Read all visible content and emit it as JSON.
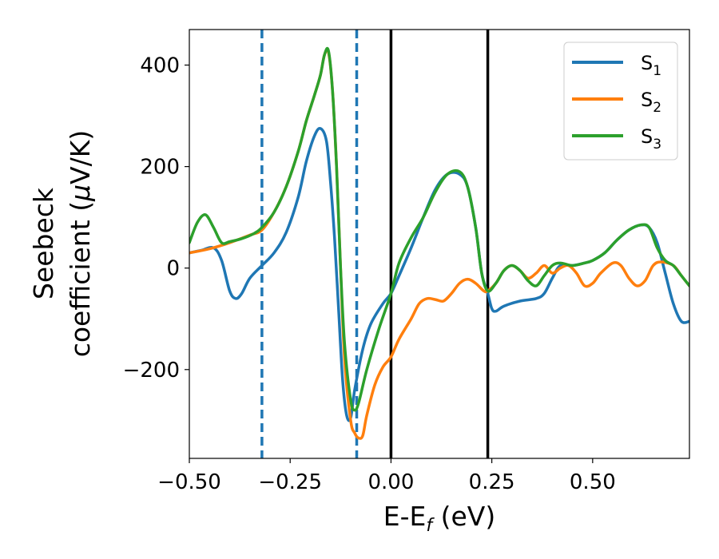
{
  "chart_data": {
    "type": "line",
    "xlabel": {
      "main": "E-E",
      "sub": "f",
      "unit": " (eV)"
    },
    "ylabel": {
      "line1": "Seebeck",
      "line2": "coefficient  (",
      "mu": "μ",
      "line2_end": "V/K)"
    },
    "xlim": [
      -0.5,
      0.74
    ],
    "ylim": [
      -375,
      470
    ],
    "x_ticks": [
      {
        "value": -0.5,
        "label": "−0.50"
      },
      {
        "value": -0.25,
        "label": "−0.25"
      },
      {
        "value": 0.0,
        "label": "0.00"
      },
      {
        "value": 0.25,
        "label": "0.25"
      },
      {
        "value": 0.5,
        "label": "0.50"
      }
    ],
    "y_ticks": [
      {
        "value": -200,
        "label": "−200"
      },
      {
        "value": 0,
        "label": "0"
      },
      {
        "value": 200,
        "label": "200"
      },
      {
        "value": 400,
        "label": "400"
      }
    ],
    "vlines": [
      {
        "x": -0.32,
        "style": "dashed",
        "color": "#1f77b4"
      },
      {
        "x": -0.085,
        "style": "dashed",
        "color": "#1f77b4"
      },
      {
        "x": 0.0,
        "style": "solid",
        "color": "#000000"
      },
      {
        "x": 0.24,
        "style": "solid",
        "color": "#000000"
      }
    ],
    "legend_position": "top-right",
    "series": [
      {
        "name": "S",
        "sub": "1",
        "color": "#1f77b4",
        "points": [
          [
            -0.5,
            30
          ],
          [
            -0.47,
            35
          ],
          [
            -0.44,
            40
          ],
          [
            -0.42,
            15
          ],
          [
            -0.4,
            -45
          ],
          [
            -0.385,
            -60
          ],
          [
            -0.37,
            -50
          ],
          [
            -0.35,
            -20
          ],
          [
            -0.32,
            5
          ],
          [
            -0.29,
            30
          ],
          [
            -0.26,
            70
          ],
          [
            -0.23,
            140
          ],
          [
            -0.21,
            210
          ],
          [
            -0.19,
            260
          ],
          [
            -0.175,
            275
          ],
          [
            -0.16,
            250
          ],
          [
            -0.15,
            170
          ],
          [
            -0.14,
            60
          ],
          [
            -0.13,
            -80
          ],
          [
            -0.12,
            -220
          ],
          [
            -0.11,
            -290
          ],
          [
            -0.1,
            -295
          ],
          [
            -0.09,
            -240
          ],
          [
            -0.07,
            -160
          ],
          [
            -0.05,
            -110
          ],
          [
            -0.02,
            -70
          ],
          [
            0.0,
            -50
          ],
          [
            0.02,
            -15
          ],
          [
            0.05,
            40
          ],
          [
            0.08,
            100
          ],
          [
            0.11,
            155
          ],
          [
            0.14,
            185
          ],
          [
            0.17,
            185
          ],
          [
            0.19,
            160
          ],
          [
            0.21,
            80
          ],
          [
            0.225,
            -10
          ],
          [
            0.24,
            -50
          ],
          [
            0.25,
            -80
          ],
          [
            0.26,
            -85
          ],
          [
            0.28,
            -75
          ],
          [
            0.32,
            -65
          ],
          [
            0.36,
            -60
          ],
          [
            0.38,
            -50
          ],
          [
            0.4,
            -20
          ],
          [
            0.42,
            5
          ],
          [
            0.45,
            5
          ],
          [
            0.48,
            10
          ],
          [
            0.5,
            15
          ],
          [
            0.53,
            30
          ],
          [
            0.56,
            55
          ],
          [
            0.59,
            75
          ],
          [
            0.62,
            85
          ],
          [
            0.64,
            80
          ],
          [
            0.66,
            50
          ],
          [
            0.68,
            -10
          ],
          [
            0.7,
            -70
          ],
          [
            0.72,
            -105
          ],
          [
            0.74,
            -105
          ]
        ]
      },
      {
        "name": "S",
        "sub": "2",
        "color": "#ff7f0e",
        "points": [
          [
            -0.5,
            30
          ],
          [
            -0.45,
            38
          ],
          [
            -0.4,
            50
          ],
          [
            -0.35,
            65
          ],
          [
            -0.32,
            75
          ],
          [
            -0.29,
            110
          ],
          [
            -0.26,
            160
          ],
          [
            -0.23,
            230
          ],
          [
            -0.21,
            290
          ],
          [
            -0.19,
            340
          ],
          [
            -0.175,
            380
          ],
          [
            -0.165,
            420
          ],
          [
            -0.155,
            425
          ],
          [
            -0.145,
            350
          ],
          [
            -0.135,
            200
          ],
          [
            -0.125,
            0
          ],
          [
            -0.115,
            -180
          ],
          [
            -0.1,
            -300
          ],
          [
            -0.09,
            -325
          ],
          [
            -0.08,
            -335
          ],
          [
            -0.07,
            -330
          ],
          [
            -0.06,
            -290
          ],
          [
            -0.04,
            -230
          ],
          [
            -0.02,
            -195
          ],
          [
            0.0,
            -175
          ],
          [
            0.02,
            -140
          ],
          [
            0.05,
            -100
          ],
          [
            0.07,
            -70
          ],
          [
            0.09,
            -60
          ],
          [
            0.11,
            -62
          ],
          [
            0.13,
            -65
          ],
          [
            0.15,
            -50
          ],
          [
            0.17,
            -30
          ],
          [
            0.19,
            -22
          ],
          [
            0.21,
            -30
          ],
          [
            0.23,
            -45
          ],
          [
            0.24,
            -45
          ],
          [
            0.26,
            -30
          ],
          [
            0.28,
            -5
          ],
          [
            0.3,
            5
          ],
          [
            0.32,
            -5
          ],
          [
            0.34,
            -20
          ],
          [
            0.36,
            -10
          ],
          [
            0.38,
            5
          ],
          [
            0.4,
            -10
          ],
          [
            0.42,
            0
          ],
          [
            0.44,
            5
          ],
          [
            0.46,
            -10
          ],
          [
            0.48,
            -35
          ],
          [
            0.5,
            -30
          ],
          [
            0.52,
            -10
          ],
          [
            0.55,
            10
          ],
          [
            0.57,
            5
          ],
          [
            0.59,
            -20
          ],
          [
            0.61,
            -35
          ],
          [
            0.63,
            -25
          ],
          [
            0.65,
            5
          ],
          [
            0.67,
            12
          ],
          [
            0.7,
            5
          ],
          [
            0.72,
            -15
          ],
          [
            0.74,
            -35
          ]
        ]
      },
      {
        "name": "S",
        "sub": "3",
        "color": "#2ca02c",
        "points": [
          [
            -0.5,
            50
          ],
          [
            -0.48,
            90
          ],
          [
            -0.46,
            105
          ],
          [
            -0.44,
            80
          ],
          [
            -0.42,
            50
          ],
          [
            -0.4,
            52
          ],
          [
            -0.37,
            58
          ],
          [
            -0.34,
            68
          ],
          [
            -0.32,
            80
          ],
          [
            -0.29,
            110
          ],
          [
            -0.26,
            160
          ],
          [
            -0.23,
            230
          ],
          [
            -0.21,
            290
          ],
          [
            -0.19,
            340
          ],
          [
            -0.175,
            380
          ],
          [
            -0.165,
            420
          ],
          [
            -0.155,
            428
          ],
          [
            -0.145,
            350
          ],
          [
            -0.135,
            200
          ],
          [
            -0.125,
            0
          ],
          [
            -0.115,
            -150
          ],
          [
            -0.1,
            -260
          ],
          [
            -0.09,
            -280
          ],
          [
            -0.08,
            -265
          ],
          [
            -0.06,
            -200
          ],
          [
            -0.03,
            -120
          ],
          [
            0.0,
            -50
          ],
          [
            0.02,
            10
          ],
          [
            0.05,
            60
          ],
          [
            0.08,
            100
          ],
          [
            0.11,
            150
          ],
          [
            0.14,
            185
          ],
          [
            0.17,
            190
          ],
          [
            0.19,
            160
          ],
          [
            0.21,
            80
          ],
          [
            0.225,
            -10
          ],
          [
            0.24,
            -45
          ],
          [
            0.26,
            -30
          ],
          [
            0.28,
            -5
          ],
          [
            0.3,
            5
          ],
          [
            0.32,
            -5
          ],
          [
            0.34,
            -25
          ],
          [
            0.36,
            -35
          ],
          [
            0.38,
            -15
          ],
          [
            0.4,
            5
          ],
          [
            0.42,
            10
          ],
          [
            0.45,
            5
          ],
          [
            0.48,
            10
          ],
          [
            0.5,
            15
          ],
          [
            0.53,
            30
          ],
          [
            0.56,
            55
          ],
          [
            0.59,
            75
          ],
          [
            0.62,
            85
          ],
          [
            0.64,
            80
          ],
          [
            0.66,
            40
          ],
          [
            0.68,
            15
          ],
          [
            0.7,
            5
          ],
          [
            0.72,
            -15
          ],
          [
            0.74,
            -35
          ]
        ]
      }
    ]
  }
}
